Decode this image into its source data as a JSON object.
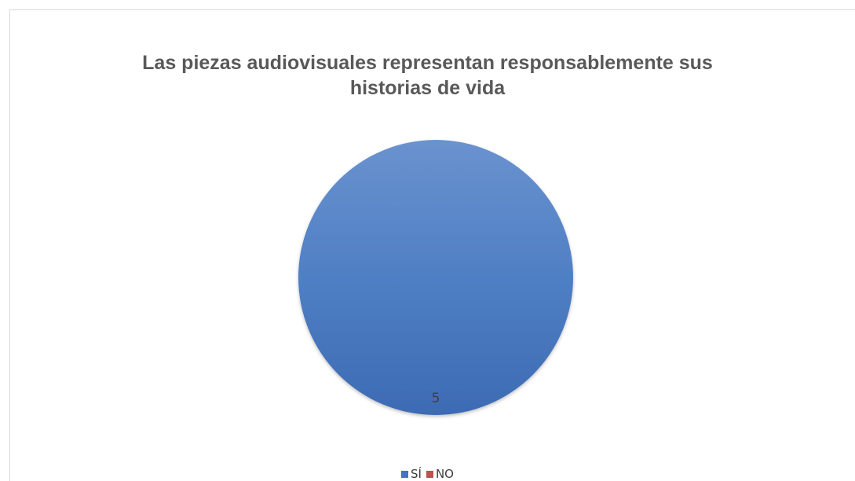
{
  "chart_data": {
    "type": "pie",
    "title": "Las piezas audiovisuales representan responsablemente sus historias de vida",
    "title_lines": [
      "Las piezas audiovisuales representan responsablemente sus",
      "historias de vida"
    ],
    "categories": [
      "SÍ",
      "NO"
    ],
    "values": [
      5,
      0
    ],
    "data_labels": [
      "5",
      ""
    ],
    "colors": [
      "#4472c4",
      "#c0504d"
    ],
    "legend_position": "bottom"
  }
}
